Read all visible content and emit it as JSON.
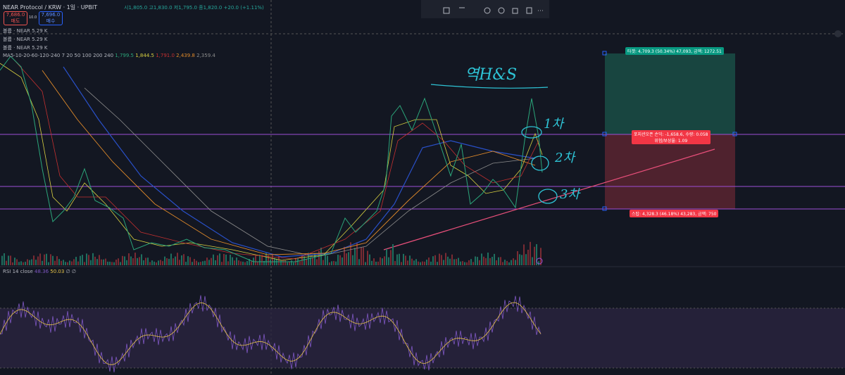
{
  "header": {
    "symbol": "NEAR Protocol / KRW · 1일 · UPBIT",
    "ohlc": "시1,805.0 고1,830.0 저1,795.0 종1,820.0 +20.0 (+1.11%)",
    "sell_price": "7,686.0",
    "sell_label": "매도",
    "spread": "10.0",
    "buy_price": "7,696.0",
    "buy_label": "매수"
  },
  "indicators": [
    "볼륨 · NEAR 5.29 K",
    "볼륨 · NEAR 5.29 K",
    "볼륨 · NEAR 5.29 K"
  ],
  "ma": {
    "label": "MA5-10-20-60-120-240 7 20 50 100 200 240",
    "values": [
      "1,799.5",
      "1,844.5",
      "1,791.0",
      "",
      "2,439.8",
      "2,359.4"
    ]
  },
  "rsi": {
    "label": "RSI 14 close",
    "values": [
      "48.36",
      "50.03",
      "∅ ∅"
    ]
  },
  "position": {
    "target": "타겟: 4,709.3 (50.34%) 47,093, 금액: 1272.51",
    "open": "포지션오픈 손익: -1,658.6, 수량: 0.058",
    "ratio": "위험/보상율: 1.09",
    "stop": "스탑: 4,328.3 (46.18%) 43,283, 금액: 750"
  },
  "annotations": [
    "역H&S",
    "1차",
    "2차",
    "3차"
  ]
}
